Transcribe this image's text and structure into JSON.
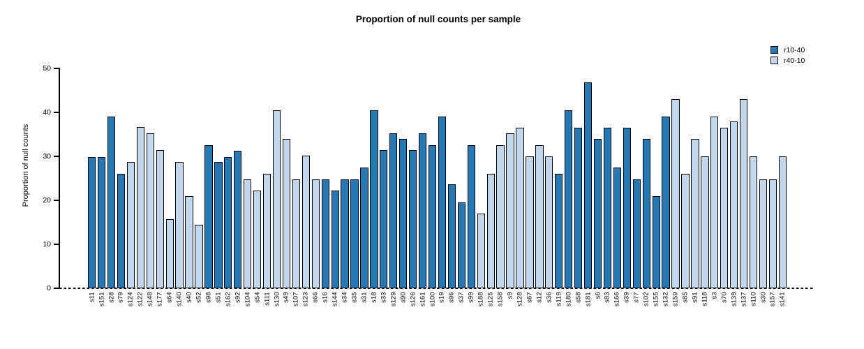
{
  "chart_data": {
    "type": "bar",
    "title": "Proportion of null counts per sample",
    "xlabel": "",
    "ylabel": "Proportion of null counts",
    "ylim": [
      0,
      50
    ],
    "yticks": [
      0,
      10,
      20,
      30,
      40,
      50
    ],
    "grid": false,
    "legend_position": "top-right",
    "baseline_style": "dashed",
    "groups": [
      {
        "name": "r10-40",
        "color": "#2378b5"
      },
      {
        "name": "r40-10",
        "color": "#c2d6ec"
      }
    ],
    "bars": [
      {
        "sample": "s11",
        "value": 29.9,
        "group": "r10-40"
      },
      {
        "sample": "s151",
        "value": 29.9,
        "group": "r10-40"
      },
      {
        "sample": "s28",
        "value": 39.1,
        "group": "r10-40"
      },
      {
        "sample": "s79",
        "value": 26.1,
        "group": "r10-40"
      },
      {
        "sample": "s124",
        "value": 28.7,
        "group": "r40-10"
      },
      {
        "sample": "s122",
        "value": 36.6,
        "group": "r40-10"
      },
      {
        "sample": "s148",
        "value": 35.2,
        "group": "r40-10"
      },
      {
        "sample": "s177",
        "value": 31.4,
        "group": "r40-10"
      },
      {
        "sample": "s64",
        "value": 15.7,
        "group": "r40-10"
      },
      {
        "sample": "s140",
        "value": 28.7,
        "group": "r40-10"
      },
      {
        "sample": "s40",
        "value": 21.0,
        "group": "r40-10"
      },
      {
        "sample": "s52",
        "value": 14.4,
        "group": "r40-10"
      },
      {
        "sample": "s98",
        "value": 32.6,
        "group": "r10-40"
      },
      {
        "sample": "s51",
        "value": 28.7,
        "group": "r10-40"
      },
      {
        "sample": "s162",
        "value": 29.9,
        "group": "r10-40"
      },
      {
        "sample": "s92",
        "value": 31.3,
        "group": "r10-40"
      },
      {
        "sample": "s104",
        "value": 24.7,
        "group": "r40-10"
      },
      {
        "sample": "s54",
        "value": 22.2,
        "group": "r40-10"
      },
      {
        "sample": "s111",
        "value": 26.1,
        "group": "r40-10"
      },
      {
        "sample": "s130",
        "value": 40.4,
        "group": "r40-10"
      },
      {
        "sample": "s49",
        "value": 34.0,
        "group": "r40-10"
      },
      {
        "sample": "s107",
        "value": 24.7,
        "group": "r40-10"
      },
      {
        "sample": "s123",
        "value": 30.1,
        "group": "r40-10"
      },
      {
        "sample": "s66",
        "value": 24.7,
        "group": "r40-10"
      },
      {
        "sample": "s16",
        "value": 24.7,
        "group": "r10-40"
      },
      {
        "sample": "s144",
        "value": 22.2,
        "group": "r10-40"
      },
      {
        "sample": "s34",
        "value": 24.7,
        "group": "r10-40"
      },
      {
        "sample": "s35",
        "value": 24.7,
        "group": "r10-40"
      },
      {
        "sample": "s31",
        "value": 27.4,
        "group": "r10-40"
      },
      {
        "sample": "s18",
        "value": 40.4,
        "group": "r10-40"
      },
      {
        "sample": "s33",
        "value": 31.4,
        "group": "r10-40"
      },
      {
        "sample": "s129",
        "value": 35.2,
        "group": "r10-40"
      },
      {
        "sample": "s90",
        "value": 34.0,
        "group": "r10-40"
      },
      {
        "sample": "s126",
        "value": 31.4,
        "group": "r10-40"
      },
      {
        "sample": "s161",
        "value": 35.2,
        "group": "r10-40"
      },
      {
        "sample": "s100",
        "value": 32.6,
        "group": "r10-40"
      },
      {
        "sample": "s19",
        "value": 39.1,
        "group": "r10-40"
      },
      {
        "sample": "s96",
        "value": 23.6,
        "group": "r10-40"
      },
      {
        "sample": "s37",
        "value": 19.6,
        "group": "r10-40"
      },
      {
        "sample": "s99",
        "value": 32.6,
        "group": "r10-40"
      },
      {
        "sample": "s188",
        "value": 17.0,
        "group": "r40-10"
      },
      {
        "sample": "s125",
        "value": 26.0,
        "group": "r40-10"
      },
      {
        "sample": "s158",
        "value": 32.6,
        "group": "r40-10"
      },
      {
        "sample": "s9",
        "value": 35.2,
        "group": "r40-10"
      },
      {
        "sample": "s128",
        "value": 36.5,
        "group": "r40-10"
      },
      {
        "sample": "s67",
        "value": 30.0,
        "group": "r40-10"
      },
      {
        "sample": "s12",
        "value": 32.6,
        "group": "r40-10"
      },
      {
        "sample": "s36",
        "value": 30.0,
        "group": "r40-10"
      },
      {
        "sample": "s119",
        "value": 26.0,
        "group": "r10-40"
      },
      {
        "sample": "s180",
        "value": 40.4,
        "group": "r10-40"
      },
      {
        "sample": "s58",
        "value": 36.5,
        "group": "r10-40"
      },
      {
        "sample": "s181",
        "value": 46.9,
        "group": "r10-40"
      },
      {
        "sample": "s6",
        "value": 34.0,
        "group": "r10-40"
      },
      {
        "sample": "s83",
        "value": 36.5,
        "group": "r10-40"
      },
      {
        "sample": "s166",
        "value": 27.4,
        "group": "r10-40"
      },
      {
        "sample": "s39",
        "value": 36.5,
        "group": "r10-40"
      },
      {
        "sample": "s77",
        "value": 24.7,
        "group": "r10-40"
      },
      {
        "sample": "s102",
        "value": 34.0,
        "group": "r10-40"
      },
      {
        "sample": "s155",
        "value": 21.0,
        "group": "r10-40"
      },
      {
        "sample": "s132",
        "value": 39.1,
        "group": "r10-40"
      },
      {
        "sample": "s159",
        "value": 43.0,
        "group": "r40-10"
      },
      {
        "sample": "s85",
        "value": 26.1,
        "group": "r40-10"
      },
      {
        "sample": "s91",
        "value": 34.0,
        "group": "r40-10"
      },
      {
        "sample": "s118",
        "value": 30.0,
        "group": "r40-10"
      },
      {
        "sample": "s3",
        "value": 39.1,
        "group": "r40-10"
      },
      {
        "sample": "s70",
        "value": 36.5,
        "group": "r40-10"
      },
      {
        "sample": "s139",
        "value": 37.9,
        "group": "r40-10"
      },
      {
        "sample": "s137",
        "value": 43.0,
        "group": "r40-10"
      },
      {
        "sample": "s110",
        "value": 30.0,
        "group": "r40-10"
      },
      {
        "sample": "s30",
        "value": 24.7,
        "group": "r40-10"
      },
      {
        "sample": "s157",
        "value": 24.7,
        "group": "r40-10"
      },
      {
        "sample": "s141",
        "value": 30.0,
        "group": "r40-10"
      }
    ]
  }
}
